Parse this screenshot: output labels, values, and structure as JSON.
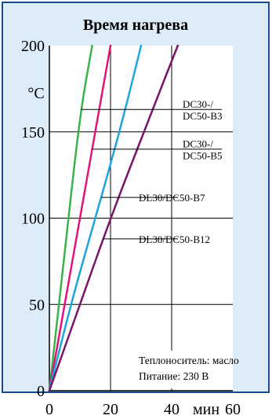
{
  "chart_data": {
    "type": "line",
    "title": "Время нагрева",
    "xlabel": "",
    "ylabel": "",
    "x_unit": "мин",
    "y_unit": "°C",
    "xlim": [
      0,
      60
    ],
    "ylim": [
      0,
      200
    ],
    "x_ticks": [
      "0",
      "20",
      "40",
      "60"
    ],
    "y_ticks": [
      "0",
      "50",
      "100",
      "150",
      "200"
    ],
    "grid": true,
    "series": [
      {
        "color": "#3cb34a",
        "points": [
          [
            0,
            0
          ],
          [
            5,
            80
          ],
          [
            10,
            160
          ],
          [
            14,
            200
          ]
        ]
      },
      {
        "color": "#e0147a",
        "points": [
          [
            0,
            0
          ],
          [
            6,
            60
          ],
          [
            14,
            140
          ],
          [
            20,
            200
          ]
        ]
      },
      {
        "color": "#1ea5dc",
        "points": [
          [
            0,
            0
          ],
          [
            7,
            50
          ],
          [
            15,
            100
          ],
          [
            23,
            150
          ],
          [
            30,
            200
          ]
        ]
      },
      {
        "color": "#7a1466",
        "points": [
          [
            0,
            0
          ],
          [
            10,
            50
          ],
          [
            20,
            100
          ],
          [
            32,
            155
          ],
          [
            42,
            200
          ]
        ]
      }
    ],
    "annotations": [
      {
        "text": [
          "DC30-/",
          "DC50-B3"
        ],
        "series": 0,
        "y": 163
      },
      {
        "text": [
          "DC30-/",
          "DC50-B5"
        ],
        "series": 1,
        "y": 140
      },
      {
        "text": [
          "DL30/DC50-B7"
        ],
        "series": 2,
        "y": 112
      },
      {
        "text": [
          "DL30/DC50-B12"
        ],
        "series": 3,
        "y": 88
      }
    ],
    "note": [
      "Теплоноситель: масло",
      "Питание: 230 В"
    ]
  },
  "colors": {
    "background": "#dcecf8",
    "frame": "#1a4c8c",
    "grid": "#000000"
  }
}
